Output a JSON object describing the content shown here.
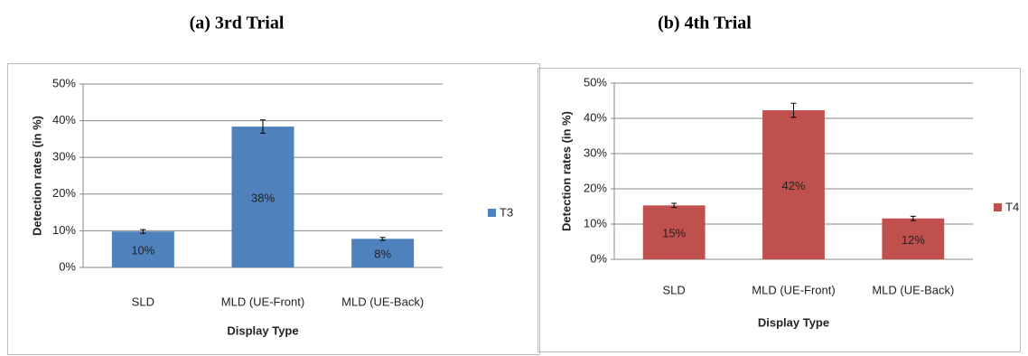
{
  "chart_data": [
    {
      "type": "bar",
      "title": "(a) 3rd Trial",
      "xlabel": "Display Type",
      "ylabel": "Detection rates (in %)",
      "categories": [
        "SLD",
        "MLD (UE-Front)",
        "MLD (UE-Back)"
      ],
      "series": [
        {
          "name": "T3",
          "color": "#4f81bd",
          "values": [
            9.8,
            38.4,
            7.8
          ],
          "value_labels": [
            "10%",
            "38%",
            "8%"
          ],
          "errors": [
            0.5,
            1.8,
            0.4
          ]
        }
      ],
      "ylim": [
        0,
        50
      ],
      "yticks": [
        {
          "value": 0,
          "label": "0%"
        },
        {
          "value": 10,
          "label": "10%"
        },
        {
          "value": 20,
          "label": "20%"
        },
        {
          "value": 30,
          "label": "30%"
        },
        {
          "value": 40,
          "label": "40%"
        },
        {
          "value": 50,
          "label": "50%"
        }
      ],
      "grid": true,
      "legend": "right"
    },
    {
      "type": "bar",
      "title": "(b) 4th Trial",
      "xlabel": "Display Type",
      "ylabel": "Detection rates (in %)",
      "categories": [
        "SLD",
        "MLD (UE-Front)",
        "MLD (UE-Back)"
      ],
      "series": [
        {
          "name": "T4",
          "color": "#c0504d",
          "values": [
            15.3,
            42.3,
            11.6
          ],
          "value_labels": [
            "15%",
            "42%",
            "12%"
          ],
          "errors": [
            0.6,
            2.0,
            0.6
          ]
        }
      ],
      "ylim": [
        0,
        50
      ],
      "yticks": [
        {
          "value": 0,
          "label": "0%"
        },
        {
          "value": 10,
          "label": "10%"
        },
        {
          "value": 20,
          "label": "20%"
        },
        {
          "value": 30,
          "label": "30%"
        },
        {
          "value": 40,
          "label": "40%"
        },
        {
          "value": 50,
          "label": "50%"
        }
      ],
      "grid": true,
      "legend": "right"
    }
  ]
}
